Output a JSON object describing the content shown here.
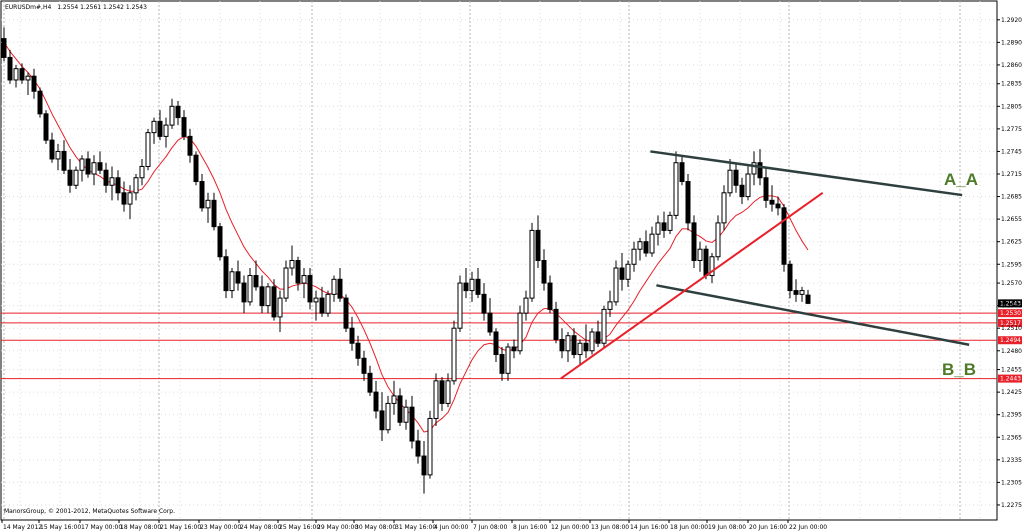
{
  "header": {
    "symbol": "EURUSDm#,H4",
    "ohlc": "1.2554 1.2561 1.2542 1.2543"
  },
  "footer": {
    "copyright": "ManorsGroup, © 2001-2012, MetaQuotes Software Corp."
  },
  "annotations": {
    "upper_channel": "A_A",
    "lower_channel": "B_B"
  },
  "colors": {
    "up_candle": "#ffffff",
    "down_candle": "#000000",
    "moving_average": "#e8202a",
    "level_line": "#e8202a",
    "trend_line": "#e8202a",
    "channel_line": "#2f3f3f",
    "grid": "#c8c8c8",
    "annotation": "#4e7a2a"
  },
  "chart_data": {
    "type": "candlestick",
    "symbol": "EURUSDm#",
    "timeframe": "H4",
    "ylim": [
      1.2255,
      1.2945
    ],
    "y_ticks": [
      "1.2920",
      "1.2890",
      "1.2860",
      "1.2835",
      "1.2805",
      "1.2775",
      "1.2745",
      "1.2715",
      "1.2685",
      "1.2655",
      "1.2625",
      "1.2595",
      "1.2570",
      "1.2540",
      "1.2510",
      "1.2480",
      "1.2455",
      "1.2425",
      "1.2395",
      "1.2365",
      "1.2335",
      "1.2305",
      "1.2275"
    ],
    "x_tick_labels": [
      "14 May 2012",
      "15 May 16:00",
      "17 May 00:00",
      "18 May 08:00",
      "21 May 16:00",
      "23 May 00:00",
      "24 May 08:00",
      "25 May 16:00",
      "29 May 00:00",
      "30 May 08:00",
      "31 May 16:00",
      "4 Jun 00:00",
      "7 Jun 08:00",
      "8 Jun 16:00",
      "12 Jun 00:00",
      "13 Jun 08:00",
      "14 Jun 16:00",
      "18 Jun 00:00",
      "19 Jun 08:00",
      "20 Jun 16:00",
      "22 Jun 00:00"
    ],
    "current_price": {
      "value": 1.2543,
      "label": "1.2543"
    },
    "horizontal_levels": [
      {
        "value": 1.253,
        "label": "1.2530"
      },
      {
        "value": 1.2517,
        "label": "1.2517"
      },
      {
        "value": 1.2494,
        "label": "1.2494"
      },
      {
        "value": 1.2443,
        "label": "1.2443"
      }
    ],
    "candles": [
      [
        1.2895,
        1.291,
        1.2865,
        1.287
      ],
      [
        1.287,
        1.288,
        1.2835,
        1.284
      ],
      [
        1.284,
        1.286,
        1.283,
        1.2855
      ],
      [
        1.2855,
        1.2862,
        1.2835,
        1.284
      ],
      [
        1.284,
        1.285,
        1.282,
        1.2845
      ],
      [
        1.2845,
        1.2855,
        1.2815,
        1.2825
      ],
      [
        1.2825,
        1.283,
        1.279,
        1.2795
      ],
      [
        1.2795,
        1.28,
        1.2755,
        1.276
      ],
      [
        1.276,
        1.277,
        1.273,
        1.2735
      ],
      [
        1.2735,
        1.2755,
        1.272,
        1.2745
      ],
      [
        1.2745,
        1.276,
        1.2715,
        1.272
      ],
      [
        1.272,
        1.2735,
        1.269,
        1.27
      ],
      [
        1.27,
        1.2725,
        1.2695,
        1.272
      ],
      [
        1.272,
        1.274,
        1.2705,
        1.2735
      ],
      [
        1.2735,
        1.2745,
        1.271,
        1.2715
      ],
      [
        1.2715,
        1.274,
        1.27,
        1.273
      ],
      [
        1.273,
        1.2745,
        1.2715,
        1.272
      ],
      [
        1.272,
        1.273,
        1.269,
        1.27
      ],
      [
        1.27,
        1.2725,
        1.268,
        1.271
      ],
      [
        1.271,
        1.272,
        1.268,
        1.269
      ],
      [
        1.269,
        1.2705,
        1.2665,
        1.2675
      ],
      [
        1.2675,
        1.27,
        1.2655,
        1.269
      ],
      [
        1.269,
        1.2715,
        1.268,
        1.271
      ],
      [
        1.271,
        1.2735,
        1.27,
        1.2725
      ],
      [
        1.2725,
        1.2775,
        1.272,
        1.277
      ],
      [
        1.277,
        1.279,
        1.2755,
        1.2785
      ],
      [
        1.2785,
        1.28,
        1.276,
        1.2765
      ],
      [
        1.2765,
        1.279,
        1.275,
        1.278
      ],
      [
        1.278,
        1.2815,
        1.2775,
        1.2805
      ],
      [
        1.2805,
        1.2812,
        1.278,
        1.279
      ],
      [
        1.279,
        1.28,
        1.276,
        1.2765
      ],
      [
        1.2765,
        1.2775,
        1.273,
        1.274
      ],
      [
        1.274,
        1.2745,
        1.27,
        1.2705
      ],
      [
        1.2705,
        1.2715,
        1.2665,
        1.267
      ],
      [
        1.267,
        1.269,
        1.265,
        1.268
      ],
      [
        1.268,
        1.269,
        1.264,
        1.2645
      ],
      [
        1.2645,
        1.265,
        1.26,
        1.2605
      ],
      [
        1.2605,
        1.2615,
        1.255,
        1.256
      ],
      [
        1.256,
        1.259,
        1.255,
        1.2585
      ],
      [
        1.2585,
        1.26,
        1.256,
        1.257
      ],
      [
        1.257,
        1.258,
        1.253,
        1.2545
      ],
      [
        1.2545,
        1.259,
        1.254,
        1.258
      ],
      [
        1.258,
        1.26,
        1.256,
        1.2565
      ],
      [
        1.2565,
        1.258,
        1.253,
        1.254
      ],
      [
        1.254,
        1.257,
        1.253,
        1.2565
      ],
      [
        1.2565,
        1.2575,
        1.252,
        1.2525
      ],
      [
        1.2525,
        1.256,
        1.2505,
        1.255
      ],
      [
        1.255,
        1.26,
        1.2545,
        1.259
      ],
      [
        1.259,
        1.262,
        1.258,
        1.26
      ],
      [
        1.26,
        1.2605,
        1.256,
        1.257
      ],
      [
        1.257,
        1.259,
        1.255,
        1.258
      ],
      [
        1.258,
        1.259,
        1.2535,
        1.2545
      ],
      [
        1.2545,
        1.256,
        1.252,
        1.255
      ],
      [
        1.255,
        1.2565,
        1.2525,
        1.253
      ],
      [
        1.253,
        1.256,
        1.2525,
        1.2555
      ],
      [
        1.2555,
        1.258,
        1.2545,
        1.2575
      ],
      [
        1.2575,
        1.259,
        1.2545,
        1.255
      ],
      [
        1.255,
        1.2555,
        1.2505,
        1.251
      ],
      [
        1.251,
        1.2525,
        1.248,
        1.249
      ],
      [
        1.249,
        1.25,
        1.246,
        1.247
      ],
      [
        1.247,
        1.248,
        1.244,
        1.245
      ],
      [
        1.245,
        1.246,
        1.242,
        1.2425
      ],
      [
        1.2425,
        1.244,
        1.239,
        1.24
      ],
      [
        1.24,
        1.2425,
        1.236,
        1.2375
      ],
      [
        1.2375,
        1.242,
        1.237,
        1.241
      ],
      [
        1.241,
        1.244,
        1.2395,
        1.242
      ],
      [
        1.242,
        1.243,
        1.238,
        1.2385
      ],
      [
        1.2385,
        1.2415,
        1.2375,
        1.2405
      ],
      [
        1.2405,
        1.242,
        1.235,
        1.236
      ],
      [
        1.236,
        1.2375,
        1.233,
        1.234
      ],
      [
        1.234,
        1.236,
        1.229,
        1.2315
      ],
      [
        1.2315,
        1.24,
        1.231,
        1.239
      ],
      [
        1.239,
        1.245,
        1.238,
        1.244
      ],
      [
        1.244,
        1.2445,
        1.24,
        1.241
      ],
      [
        1.241,
        1.245,
        1.2405,
        1.244
      ],
      [
        1.244,
        1.252,
        1.2435,
        1.251
      ],
      [
        1.251,
        1.258,
        1.2505,
        1.257
      ],
      [
        1.257,
        1.259,
        1.255,
        1.256
      ],
      [
        1.256,
        1.2585,
        1.2545,
        1.2575
      ],
      [
        1.2575,
        1.259,
        1.255,
        1.2555
      ],
      [
        1.2555,
        1.257,
        1.252,
        1.253
      ],
      [
        1.253,
        1.255,
        1.25,
        1.2505
      ],
      [
        1.2505,
        1.251,
        1.2465,
        1.2475
      ],
      [
        1.2475,
        1.2485,
        1.244,
        1.245
      ],
      [
        1.245,
        1.249,
        1.244,
        1.2485
      ],
      [
        1.2485,
        1.2495,
        1.247,
        1.248
      ],
      [
        1.248,
        1.254,
        1.2475,
        1.253
      ],
      [
        1.253,
        1.256,
        1.252,
        1.255
      ],
      [
        1.255,
        1.265,
        1.2545,
        1.264
      ],
      [
        1.264,
        1.266,
        1.259,
        1.26
      ],
      [
        1.26,
        1.2615,
        1.256,
        1.257
      ],
      [
        1.257,
        1.258,
        1.253,
        1.2535
      ],
      [
        1.2535,
        1.2545,
        1.249,
        1.2495
      ],
      [
        1.2495,
        1.251,
        1.247,
        1.248
      ],
      [
        1.248,
        1.2505,
        1.2465,
        1.25
      ],
      [
        1.25,
        1.251,
        1.247,
        1.2475
      ],
      [
        1.2475,
        1.2495,
        1.246,
        1.249
      ],
      [
        1.249,
        1.2515,
        1.247,
        1.248
      ],
      [
        1.248,
        1.251,
        1.2475,
        1.2505
      ],
      [
        1.2505,
        1.252,
        1.2485,
        1.249
      ],
      [
        1.249,
        1.254,
        1.2485,
        1.2535
      ],
      [
        1.2535,
        1.256,
        1.2525,
        1.2545
      ],
      [
        1.2545,
        1.26,
        1.254,
        1.259
      ],
      [
        1.259,
        1.261,
        1.256,
        1.2575
      ],
      [
        1.2575,
        1.26,
        1.2565,
        1.2595
      ],
      [
        1.2595,
        1.2625,
        1.2585,
        1.2615
      ],
      [
        1.2615,
        1.263,
        1.26,
        1.2625
      ],
      [
        1.2625,
        1.264,
        1.2605,
        1.261
      ],
      [
        1.261,
        1.2645,
        1.2605,
        1.2635
      ],
      [
        1.2635,
        1.266,
        1.262,
        1.265
      ],
      [
        1.265,
        1.2665,
        1.263,
        1.264
      ],
      [
        1.264,
        1.2665,
        1.2635,
        1.266
      ],
      [
        1.266,
        1.2745,
        1.2655,
        1.273
      ],
      [
        1.273,
        1.274,
        1.27,
        1.2705
      ],
      [
        1.2705,
        1.2715,
        1.264,
        1.265
      ],
      [
        1.265,
        1.266,
        1.259,
        1.26
      ],
      [
        1.26,
        1.2625,
        1.2585,
        1.2615
      ],
      [
        1.2615,
        1.262,
        1.2575,
        1.258
      ],
      [
        1.258,
        1.261,
        1.257,
        1.2605
      ],
      [
        1.2605,
        1.266,
        1.26,
        1.265
      ],
      [
        1.265,
        1.27,
        1.264,
        1.269
      ],
      [
        1.269,
        1.2735,
        1.2685,
        1.272
      ],
      [
        1.272,
        1.273,
        1.269,
        1.27
      ],
      [
        1.27,
        1.271,
        1.2675,
        1.2685
      ],
      [
        1.2685,
        1.2725,
        1.268,
        1.2715
      ],
      [
        1.2715,
        1.2745,
        1.27,
        1.273
      ],
      [
        1.273,
        1.2748,
        1.27,
        1.271
      ],
      [
        1.271,
        1.2725,
        1.267,
        1.268
      ],
      [
        1.268,
        1.27,
        1.2665,
        1.2675
      ],
      [
        1.2675,
        1.2685,
        1.266,
        1.267
      ],
      [
        1.267,
        1.2675,
        1.2585,
        1.2595
      ],
      [
        1.2595,
        1.26,
        1.255,
        1.256
      ],
      [
        1.256,
        1.2575,
        1.2545,
        1.2555
      ],
      [
        1.2555,
        1.2565,
        1.2545,
        1.256
      ],
      [
        1.2554,
        1.2561,
        1.2542,
        1.2543
      ]
    ],
    "moving_average": [
      1.289,
      1.2878,
      1.2868,
      1.2858,
      1.285,
      1.284,
      1.2828,
      1.2812,
      1.2795,
      1.278,
      1.2765,
      1.275,
      1.2738,
      1.2728,
      1.272,
      1.2716,
      1.2712,
      1.2706,
      1.2703,
      1.27,
      1.2695,
      1.2692,
      1.2692,
      1.2695,
      1.2705,
      1.2718,
      1.2728,
      1.2738,
      1.275,
      1.276,
      1.2765,
      1.2762,
      1.2752,
      1.2738,
      1.2724,
      1.2708,
      1.269,
      1.2668,
      1.265,
      1.2634,
      1.2618,
      1.2606,
      1.2596,
      1.2586,
      1.2578,
      1.2568,
      1.2562,
      1.2562,
      1.2566,
      1.2568,
      1.257,
      1.2568,
      1.2565,
      1.256,
      1.2556,
      1.2556,
      1.2555,
      1.2548,
      1.2538,
      1.2524,
      1.2508,
      1.249,
      1.247,
      1.2448,
      1.2432,
      1.242,
      1.241,
      1.2402,
      1.2394,
      1.2384,
      1.2372,
      1.2374,
      1.2384,
      1.239,
      1.2398,
      1.2415,
      1.2436,
      1.2452,
      1.2468,
      1.248,
      1.2488,
      1.249,
      1.2488,
      1.2482,
      1.248,
      1.2482,
      1.2488,
      1.2498,
      1.2518,
      1.253,
      1.2536,
      1.2536,
      1.253,
      1.2522,
      1.2514,
      1.2506,
      1.25,
      1.2494,
      1.2492,
      1.2492,
      1.2496,
      1.2502,
      1.2514,
      1.2524,
      1.2534,
      1.2546,
      1.256,
      1.2572,
      1.2584,
      1.2596,
      1.2606,
      1.2616,
      1.2632,
      1.2642,
      1.2642,
      1.2636,
      1.2632,
      1.2626,
      1.2624,
      1.263,
      1.264,
      1.2652,
      1.266,
      1.2664,
      1.267,
      1.2678,
      1.2684,
      1.2686,
      1.2686,
      1.2684,
      1.2672,
      1.2656,
      1.264,
      1.2626,
      1.2614
    ],
    "trend_lines": [
      {
        "name": "channel-upper",
        "from": [
          0.652,
          1.2745
        ],
        "to": [
          0.965,
          1.2687
        ]
      },
      {
        "name": "channel-lower",
        "from": [
          0.658,
          1.2567
        ],
        "to": [
          0.972,
          1.2488
        ]
      },
      {
        "name": "support",
        "from": [
          0.562,
          1.2443
        ],
        "to": [
          0.825,
          1.269
        ]
      }
    ]
  }
}
